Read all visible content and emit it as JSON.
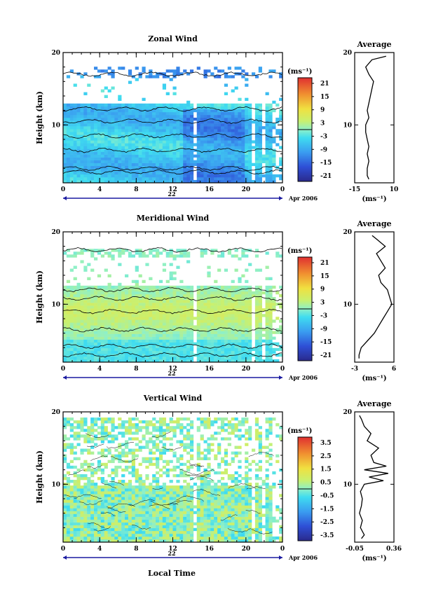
{
  "figure": {
    "x_axis_title": "Local Time",
    "date_label": "Apr 2006",
    "day_label": "22",
    "y_axis_title": "Height (km)",
    "unit_label": "(ms⁻¹)",
    "average_title": "Average"
  },
  "chart_data": [
    {
      "type": "heatmap",
      "title": "Zonal Wind",
      "x_ticks": [
        "0",
        "4",
        "8",
        "12",
        "16",
        "20",
        "0"
      ],
      "y_ticks": [
        "10",
        "20"
      ],
      "ylim": [
        2,
        20
      ],
      "xlim": [
        0,
        24
      ],
      "colorbar_ticks": [
        "21",
        "15",
        "9",
        "3",
        "-3",
        "-9",
        "-15",
        "-21"
      ],
      "colorbar_range": [
        -24,
        24
      ],
      "profile_x_ticks": [
        "-15",
        "10"
      ],
      "profile_x_range": [
        -15,
        10
      ],
      "profile": {
        "heights": [
          2.5,
          3,
          4,
          5,
          6,
          7,
          8,
          9,
          10,
          11,
          12,
          13,
          14,
          15,
          16,
          17,
          18,
          19,
          19.5
        ],
        "values": [
          -6,
          -7,
          -7,
          -6,
          -7,
          -6,
          -7,
          -8,
          -8,
          -6,
          -7,
          -6,
          -5,
          -4,
          -3,
          -6,
          -8,
          -4,
          5
        ]
      }
    },
    {
      "type": "heatmap",
      "title": "Meridional Wind",
      "x_ticks": [
        "0",
        "4",
        "8",
        "12",
        "16",
        "20",
        "0"
      ],
      "y_ticks": [
        "10",
        "20"
      ],
      "ylim": [
        2,
        20
      ],
      "xlim": [
        0,
        24
      ],
      "colorbar_ticks": [
        "21",
        "15",
        "9",
        "3",
        "-3",
        "-9",
        "-15",
        "-21"
      ],
      "colorbar_range": [
        -24,
        24
      ],
      "profile_x_ticks": [
        "-3",
        "6"
      ],
      "profile_x_range": [
        -3,
        6
      ],
      "profile": {
        "heights": [
          2.5,
          3,
          4,
          5,
          6,
          7,
          8,
          9,
          10,
          11,
          12,
          13,
          14,
          15,
          16,
          17,
          18,
          19,
          19.5
        ],
        "values": [
          -2,
          -2,
          -1.5,
          0,
          1.5,
          2.5,
          3.5,
          4.5,
          5.5,
          5,
          4.5,
          3,
          2.5,
          4,
          3,
          2,
          4,
          2,
          1
        ]
      }
    },
    {
      "type": "heatmap",
      "title": "Vertical Wind",
      "x_ticks": [
        "0",
        "4",
        "8",
        "12",
        "16",
        "20",
        "0"
      ],
      "y_ticks": [
        "10",
        "20"
      ],
      "ylim": [
        2,
        20
      ],
      "xlim": [
        0,
        24
      ],
      "colorbar_ticks": [
        "3.5",
        "2.5",
        "1.5",
        "0.5",
        "-0.5",
        "-1.5",
        "-2.5",
        "-3.5"
      ],
      "colorbar_range": [
        -4,
        4
      ],
      "profile_x_ticks": [
        "-0.05",
        "0.36"
      ],
      "profile_x_range": [
        -0.05,
        0.36
      ],
      "profile": {
        "heights": [
          2.5,
          3,
          4,
          5,
          6,
          7,
          8,
          9,
          10,
          10.5,
          11,
          11.5,
          12,
          12.5,
          13,
          14,
          15,
          16,
          17,
          18,
          19,
          19.5
        ],
        "values": [
          0.02,
          0.05,
          0.01,
          0.03,
          0.0,
          0.02,
          0.03,
          0.01,
          0.05,
          0.25,
          0.1,
          0.3,
          0.05,
          0.28,
          0.15,
          0.12,
          0.2,
          0.08,
          0.12,
          0.05,
          0.02,
          0.0
        ]
      }
    }
  ]
}
